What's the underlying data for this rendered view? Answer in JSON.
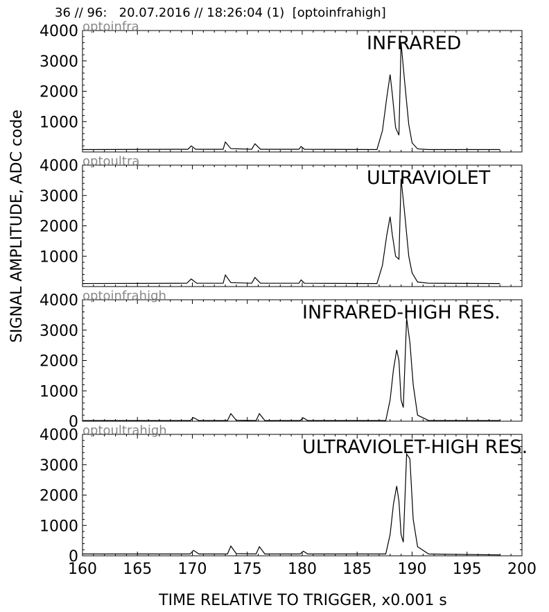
{
  "header": "36 // 96:   20.07.2016 // 18:26:04 (1)  [optoinfrahigh]",
  "chart_data": {
    "type": "line",
    "ylabel": "SIGNAL AMPLITUDE,  ADC code",
    "xlabel": "TIME RELATIVE TO TRIGGER,   x0.001 s",
    "xlim": [
      160,
      200
    ],
    "xticks": [
      160,
      165,
      170,
      175,
      180,
      185,
      190,
      195,
      200
    ],
    "panels": [
      {
        "channel": "optoinfra",
        "title": "INFRARED",
        "ylim": [
          0,
          4000
        ],
        "yticks": [
          1000,
          2000,
          3000,
          4000
        ],
        "x": [
          160,
          169.6,
          169.9,
          170.3,
          172.8,
          173.0,
          173.5,
          175.4,
          175.7,
          176.2,
          179.7,
          179.9,
          180.2,
          186.8,
          187.3,
          187.7,
          188.0,
          188.2,
          188.5,
          188.8,
          189.0,
          189.3,
          189.7,
          190.0,
          190.5,
          191.5,
          198
        ],
        "y": [
          80,
          90,
          200,
          90,
          90,
          330,
          110,
          90,
          270,
          90,
          90,
          180,
          90,
          80,
          700,
          1800,
          2550,
          1900,
          800,
          550,
          3600,
          2400,
          900,
          300,
          100,
          80,
          80
        ]
      },
      {
        "channel": "optoultra",
        "title": "ULTRAVIOLET",
        "ylim": [
          0,
          4000
        ],
        "yticks": [
          1000,
          2000,
          3000,
          4000
        ],
        "x": [
          160,
          169.5,
          169.9,
          170.4,
          172.8,
          173.0,
          173.5,
          175.4,
          175.7,
          176.2,
          179.7,
          179.9,
          180.2,
          186.8,
          187.3,
          187.7,
          188.0,
          188.2,
          188.5,
          188.8,
          189.0,
          189.3,
          189.7,
          190.0,
          190.5,
          191.5,
          198
        ],
        "y": [
          100,
          110,
          250,
          110,
          110,
          380,
          130,
          110,
          300,
          110,
          110,
          220,
          110,
          100,
          700,
          1700,
          2300,
          1700,
          1000,
          900,
          3550,
          2500,
          1000,
          450,
          150,
          110,
          100
        ]
      },
      {
        "channel": "optoinfrahigh",
        "title": "INFRARED-HIGH RES.",
        "ylim": [
          0,
          4000
        ],
        "yticks": [
          0,
          1000,
          2000,
          3000,
          4000
        ],
        "x": [
          160,
          169.8,
          170.1,
          170.6,
          173.2,
          173.5,
          174.0,
          175.8,
          176.1,
          176.6,
          179.8,
          180.1,
          180.5,
          187.6,
          188.0,
          188.3,
          188.6,
          188.8,
          189.0,
          189.2,
          189.5,
          189.8,
          190.1,
          190.5,
          191.5,
          198
        ],
        "y": [
          20,
          20,
          120,
          20,
          20,
          250,
          30,
          20,
          250,
          20,
          20,
          110,
          20,
          20,
          700,
          1700,
          2350,
          2000,
          700,
          450,
          3400,
          2600,
          1200,
          200,
          20,
          20
        ]
      },
      {
        "channel": "optoultrahigh",
        "title": "ULTRAVIOLET-HIGH RES.",
        "ylim": [
          0,
          4000
        ],
        "yticks": [
          0,
          1000,
          2000,
          3000,
          4000
        ],
        "x": [
          160,
          169.8,
          170.1,
          170.6,
          173.2,
          173.5,
          174.0,
          175.8,
          176.1,
          176.6,
          179.8,
          180.1,
          180.5,
          187.6,
          188.0,
          188.3,
          188.6,
          188.8,
          189.0,
          189.2,
          189.5,
          189.8,
          190.1,
          190.5,
          191.5,
          198
        ],
        "y": [
          60,
          60,
          180,
          60,
          60,
          320,
          70,
          60,
          300,
          60,
          60,
          150,
          60,
          60,
          700,
          1700,
          2300,
          1800,
          700,
          450,
          3350,
          3200,
          1200,
          300,
          60,
          30
        ]
      }
    ]
  }
}
